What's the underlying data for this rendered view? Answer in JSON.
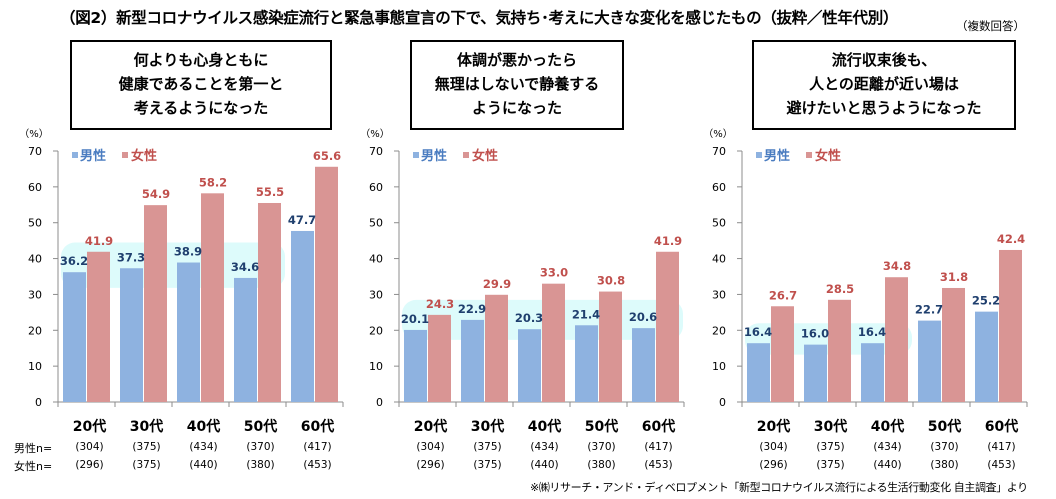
{
  "header": {
    "title": "（図2）新型コロナウイルス感染症流行と緊急事態宣言の下で、気持ち･考えに大きな変化を感じたもの（抜粋／性年代別）",
    "note": "（複数回答）"
  },
  "footer": {
    "source": "※㈱リサーチ・アンド・ディベロプメント「新型コロナウイルス流行による生活行動変化 自主調査」より"
  },
  "sample_labels": {
    "male": "男性n=",
    "female": "女性n="
  },
  "colors": {
    "male": "#8eb2e0",
    "female": "#d99594",
    "male_label": "#1f3f6e",
    "female_label": "#c0504d",
    "male_legend": "#4a7cc0",
    "highlight": "#ddfbfb"
  },
  "chart_data": [
    {
      "type": "bar",
      "title_lines": [
        "何よりも心身ともに",
        "健康であることを第一と",
        "考えるようになった"
      ],
      "ylabel": "（%）",
      "ylim": [
        0,
        70
      ],
      "yticks": [
        "0",
        "10",
        "20",
        "30",
        "40",
        "50",
        "60",
        "70"
      ],
      "categories": [
        "20代",
        "30代",
        "40代",
        "50代",
        "60代"
      ],
      "legend": [
        "男性",
        "女性"
      ],
      "legend_position": "top-left",
      "series": [
        {
          "name": "男性",
          "values": [
            36.2,
            37.3,
            38.9,
            34.6,
            47.7
          ],
          "labels": [
            "36.2",
            "37.3",
            "38.9",
            "34.6",
            "47.7"
          ]
        },
        {
          "name": "女性",
          "values": [
            41.9,
            54.9,
            58.2,
            55.5,
            65.6
          ],
          "labels": [
            "41.9",
            "54.9",
            "58.2",
            "55.5",
            "65.6"
          ]
        }
      ],
      "highlighted_male_categories": [
        "20代",
        "30代",
        "40代",
        "50代"
      ],
      "n_male": [
        "(304)",
        "(375)",
        "(434)",
        "(370)",
        "(417)"
      ],
      "n_female": [
        "(296)",
        "(375)",
        "(440)",
        "(380)",
        "(453)"
      ]
    },
    {
      "type": "bar",
      "title_lines": [
        "体調が悪かったら",
        "無理はしないで静養する",
        "ようになった"
      ],
      "ylabel": "（%）",
      "ylim": [
        0,
        70
      ],
      "yticks": [
        "0",
        "10",
        "20",
        "30",
        "40",
        "50",
        "60",
        "70"
      ],
      "categories": [
        "20代",
        "30代",
        "40代",
        "50代",
        "60代"
      ],
      "legend": [
        "男性",
        "女性"
      ],
      "legend_position": "top-left",
      "series": [
        {
          "name": "男性",
          "values": [
            20.1,
            22.9,
            20.3,
            21.4,
            20.6
          ],
          "labels": [
            "20.1",
            "22.9",
            "20.3",
            "21.4",
            "20.6"
          ]
        },
        {
          "name": "女性",
          "values": [
            24.3,
            29.9,
            33.0,
            30.8,
            41.9
          ],
          "labels": [
            "24.3",
            "29.9",
            "33.0",
            "30.8",
            "41.9"
          ]
        }
      ],
      "highlighted_male_categories": [
        "20代",
        "30代",
        "40代",
        "50代",
        "60代"
      ],
      "n_male": [
        "(304)",
        "(375)",
        "(434)",
        "(370)",
        "(417)"
      ],
      "n_female": [
        "(296)",
        "(375)",
        "(440)",
        "(380)",
        "(453)"
      ]
    },
    {
      "type": "bar",
      "title_lines": [
        "流行収束後も、",
        "人との距離が近い場は",
        "避けたいと思うようになった"
      ],
      "ylabel": "（%）",
      "ylim": [
        0,
        70
      ],
      "yticks": [
        "0",
        "10",
        "20",
        "30",
        "40",
        "50",
        "60",
        "70"
      ],
      "categories": [
        "20代",
        "30代",
        "40代",
        "50代",
        "60代"
      ],
      "legend": [
        "男性",
        "女性"
      ],
      "legend_position": "top-left",
      "series": [
        {
          "name": "男性",
          "values": [
            16.4,
            16.0,
            16.4,
            22.7,
            25.2
          ],
          "labels": [
            "16.4",
            "16.0",
            "16.4",
            "22.7",
            "25.2"
          ]
        },
        {
          "name": "女性",
          "values": [
            26.7,
            28.5,
            34.8,
            31.8,
            42.4
          ],
          "labels": [
            "26.7",
            "28.5",
            "34.8",
            "31.8",
            "42.4"
          ]
        }
      ],
      "highlighted_male_categories": [
        "20代",
        "30代",
        "40代"
      ],
      "n_male": [
        "(304)",
        "(375)",
        "(434)",
        "(370)",
        "(417)"
      ],
      "n_female": [
        "(296)",
        "(375)",
        "(440)",
        "(380)",
        "(453)"
      ]
    }
  ]
}
